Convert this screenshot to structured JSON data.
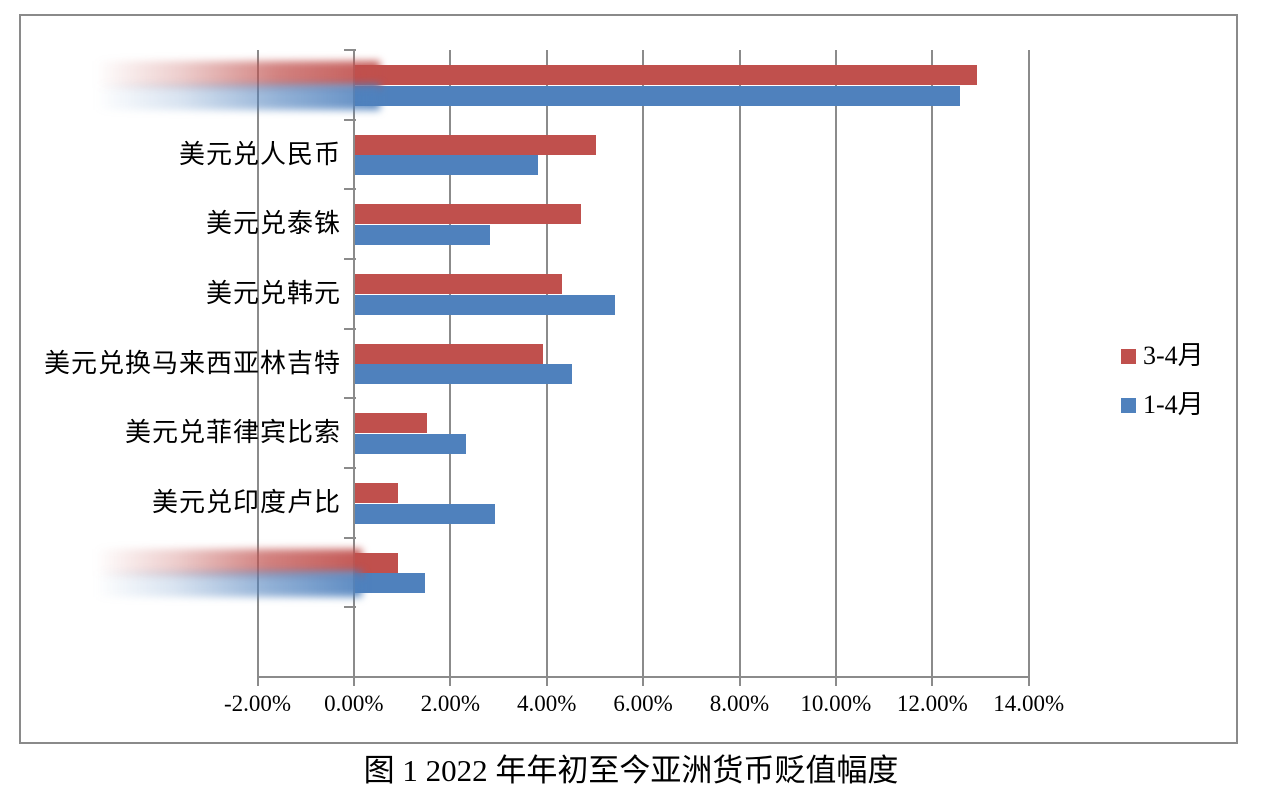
{
  "chart_data": {
    "type": "bar",
    "orientation": "horizontal",
    "title": "图 1 2022 年年初至今亚洲货币贬值幅度",
    "categories": [
      {
        "label": "",
        "redacted": true
      },
      {
        "label": "美元兑人民币",
        "redacted": false
      },
      {
        "label": "美元兑泰铢",
        "redacted": false
      },
      {
        "label": "美元兑韩元",
        "redacted": false
      },
      {
        "label": "美元兑换马来西亚林吉特",
        "redacted": false
      },
      {
        "label": "美元兑菲律宾比索",
        "redacted": false
      },
      {
        "label": "美元兑印度卢比",
        "redacted": false
      },
      {
        "label": "",
        "redacted": true
      }
    ],
    "series": [
      {
        "name": "3-4月",
        "color": "#C0504D",
        "values_pct": [
          12.9,
          5.0,
          4.7,
          4.3,
          3.9,
          1.5,
          0.9,
          0.9
        ]
      },
      {
        "name": "1-4月",
        "color": "#4F81BD",
        "values_pct": [
          12.55,
          3.8,
          2.8,
          5.4,
          4.5,
          2.3,
          2.9,
          1.45
        ]
      }
    ],
    "x_axis": {
      "min": -2,
      "max": 14,
      "step": 2,
      "tick_labels": [
        "-2.00%",
        "0.00%",
        "2.00%",
        "4.00%",
        "6.00%",
        "8.00%",
        "10.00%",
        "12.00%",
        "14.00%"
      ],
      "unit": "%"
    },
    "legend_position": "right",
    "grid": true
  },
  "colors": {
    "grid": "#8b8b8b",
    "chart_border": "#8a8a8a",
    "text": "#000000"
  }
}
